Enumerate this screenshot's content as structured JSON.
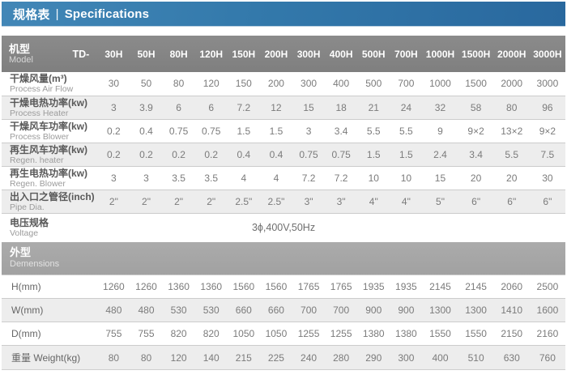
{
  "header": {
    "title_zh": "规格表",
    "separator": "|",
    "title_en": "Specifications"
  },
  "colors": {
    "title_bar_gradient_start": "#4287b7",
    "title_bar_gradient_end": "#29689e",
    "model_bar": "#858585",
    "dimensions_bar": "#a7a7a7",
    "row_alt_background": "#ededed",
    "divider": "#cccccc"
  },
  "model_header": {
    "label_zh": "机型",
    "label_en": "Model",
    "prefix": "TD-",
    "columns": [
      "30H",
      "50H",
      "80H",
      "120H",
      "150H",
      "200H",
      "300H",
      "400H",
      "500H",
      "700H",
      "1000H",
      "1500H",
      "2000H",
      "3000H"
    ]
  },
  "spec_rows": [
    {
      "label_zh": "干燥风量(m³)",
      "label_en": "Process Air Flow",
      "values": [
        "30",
        "50",
        "80",
        "120",
        "150",
        "200",
        "300",
        "400",
        "500",
        "700",
        "1000",
        "1500",
        "2000",
        "3000"
      ]
    },
    {
      "label_zh": "干燥电热功率(kw)",
      "label_en": "Process Heater",
      "values": [
        "3",
        "3.9",
        "6",
        "6",
        "7.2",
        "12",
        "15",
        "18",
        "21",
        "24",
        "32",
        "58",
        "80",
        "96"
      ]
    },
    {
      "label_zh": "干燥风车功率(kw)",
      "label_en": "Process Blower",
      "values": [
        "0.2",
        "0.4",
        "0.75",
        "0.75",
        "1.5",
        "1.5",
        "3",
        "3.4",
        "5.5",
        "5.5",
        "9",
        "9×2",
        "13×2",
        "9×2"
      ]
    },
    {
      "label_zh": "再生风车功率(kw)",
      "label_en": "Regen. heater",
      "values": [
        "0.2",
        "0.2",
        "0.2",
        "0.2",
        "0.4",
        "0.4",
        "0.75",
        "0.75",
        "1.5",
        "1.5",
        "2.4",
        "3.4",
        "5.5",
        "7.5"
      ]
    },
    {
      "label_zh": "再生电热功率(kw)",
      "label_en": "Regen. Blower",
      "values": [
        "3",
        "3",
        "3.5",
        "3.5",
        "4",
        "4",
        "7.2",
        "7.2",
        "10",
        "10",
        "15",
        "20",
        "20",
        "30"
      ]
    },
    {
      "label_zh": "出入口之管径(inch)",
      "label_en": "Pipe Dia.",
      "values": [
        "2\"",
        "2\"",
        "2\"",
        "2\"",
        "2.5\"",
        "2.5\"",
        "3\"",
        "3\"",
        "4\"",
        "4\"",
        "5\"",
        "6\"",
        "6\"",
        "6\""
      ]
    }
  ],
  "voltage_row": {
    "label_zh": "电压规格",
    "label_en": "Voltage",
    "value": "3ϕ,400V,50Hz"
  },
  "dimensions_header": {
    "label_zh": "外型",
    "label_en": "Demensions"
  },
  "dimension_rows": [
    {
      "label": "H(mm)",
      "values": [
        "1260",
        "1260",
        "1360",
        "1360",
        "1560",
        "1560",
        "1765",
        "1765",
        "1935",
        "1935",
        "2145",
        "2145",
        "2060",
        "2500"
      ]
    },
    {
      "label": "W(mm)",
      "values": [
        "480",
        "480",
        "530",
        "530",
        "660",
        "660",
        "700",
        "700",
        "900",
        "900",
        "1300",
        "1300",
        "1410",
        "1600"
      ]
    },
    {
      "label": "D(mm)",
      "values": [
        "755",
        "755",
        "820",
        "820",
        "1050",
        "1050",
        "1255",
        "1255",
        "1380",
        "1380",
        "1550",
        "1550",
        "2150",
        "2160"
      ]
    },
    {
      "label": "重量 Weight(kg)",
      "values": [
        "80",
        "80",
        "120",
        "140",
        "215",
        "225",
        "240",
        "280",
        "290",
        "300",
        "400",
        "510",
        "630",
        "760"
      ]
    }
  ]
}
